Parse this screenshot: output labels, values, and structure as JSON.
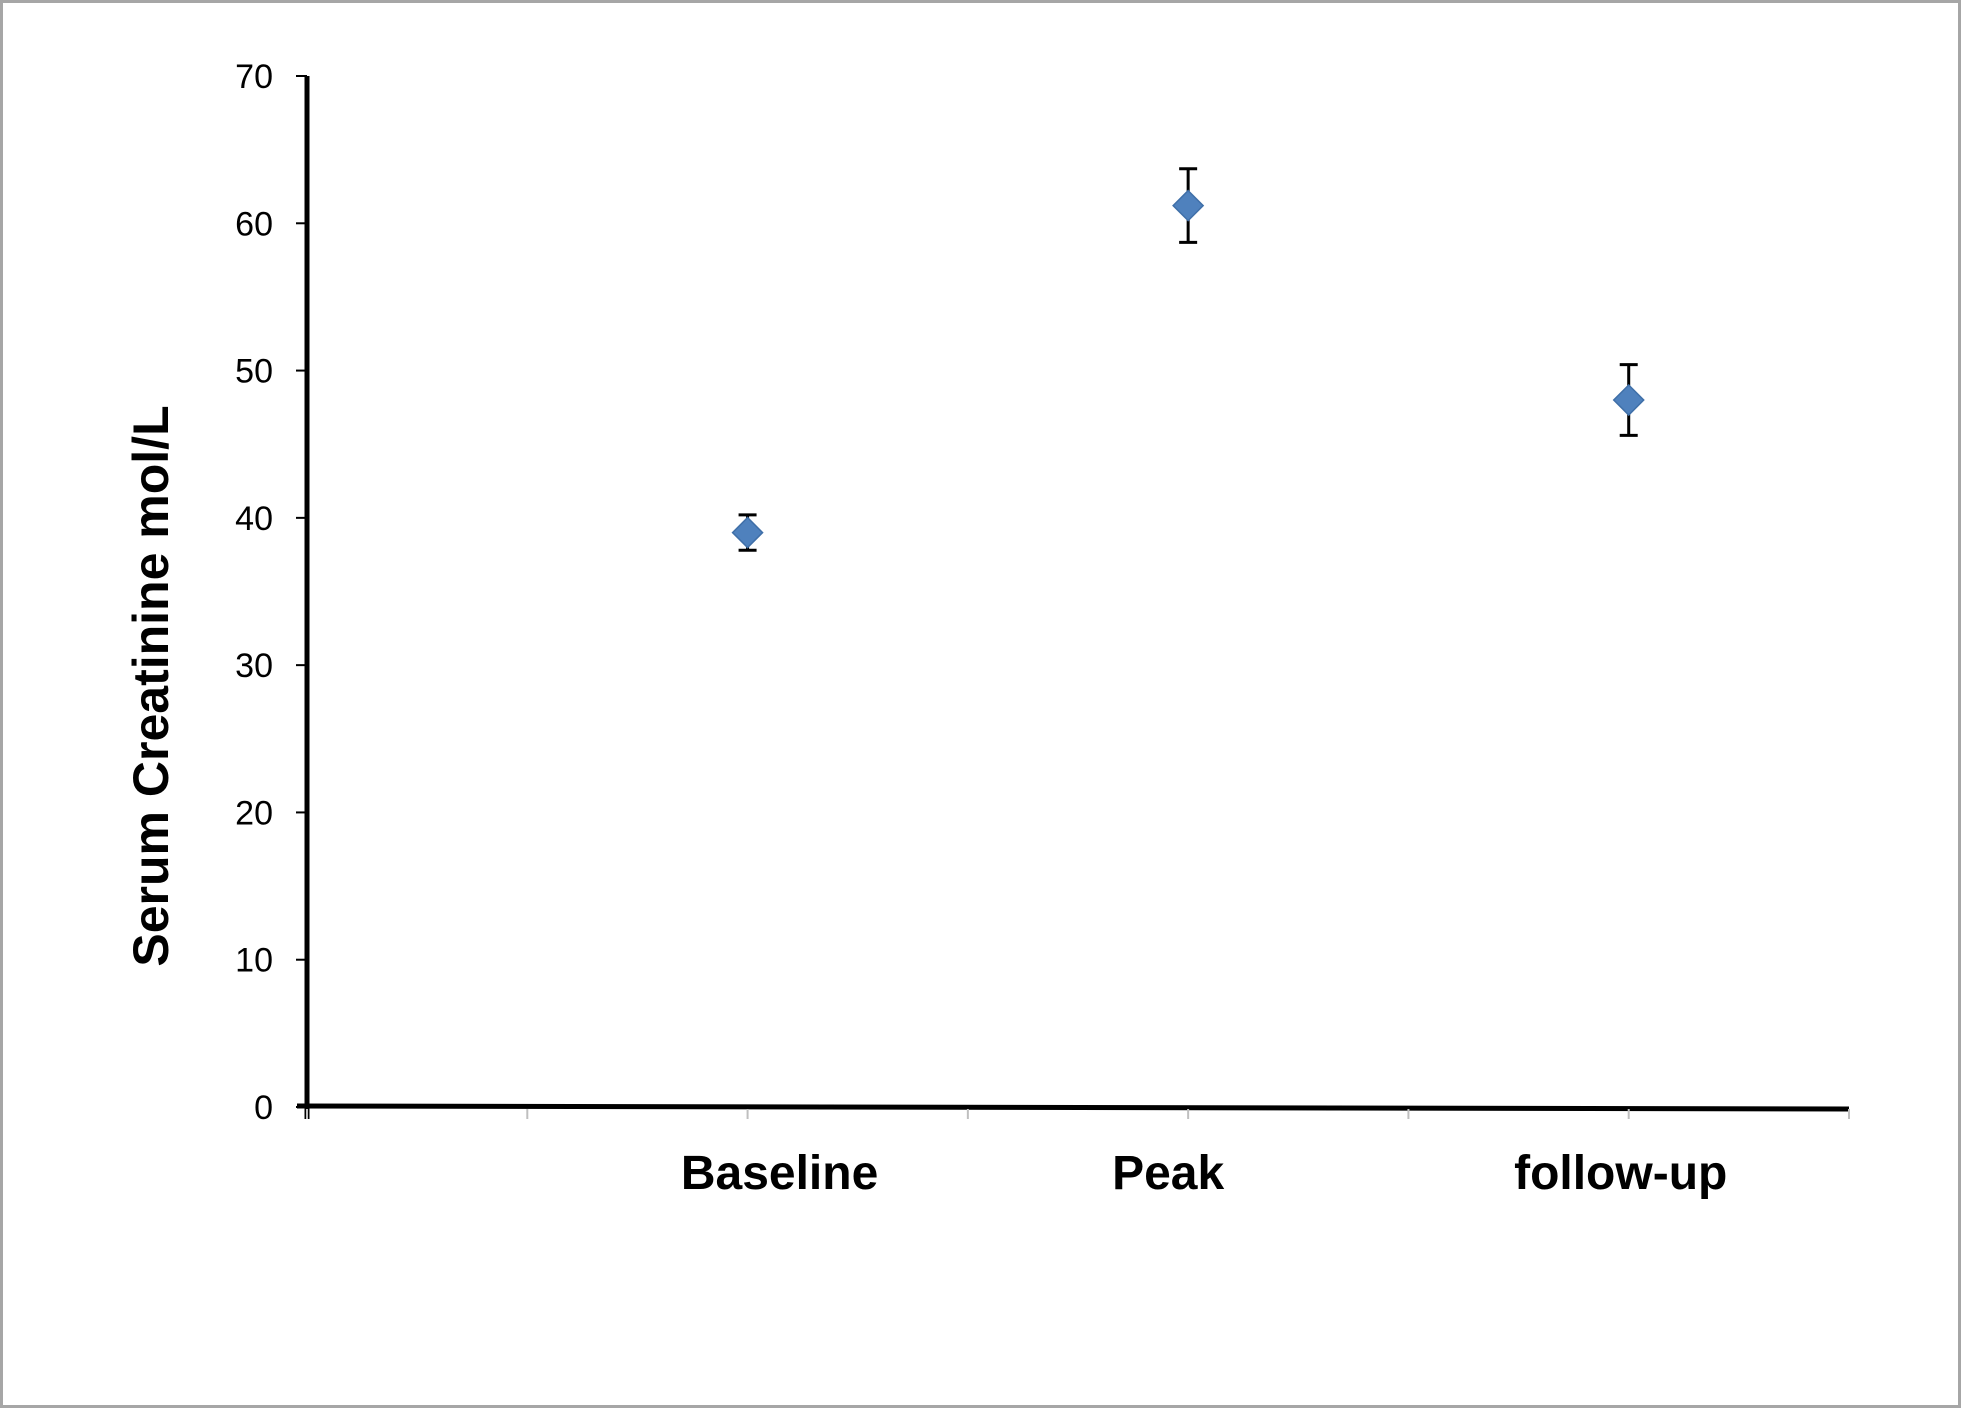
{
  "chart_data": {
    "type": "scatter",
    "title": "",
    "xlabel": "",
    "ylabel": "Serum Creatinine   mol/L",
    "ylim": [
      0,
      70
    ],
    "yticks": [
      0,
      10,
      20,
      30,
      40,
      50,
      60,
      70
    ],
    "categories": [
      "Baseline",
      "Peak",
      "follow-up"
    ],
    "series": [
      {
        "values": [
          39,
          61.2,
          48
        ],
        "errors": [
          1.2,
          2.5,
          2.4
        ],
        "color": "#4f81bd",
        "marker": "diamond"
      }
    ],
    "grid": false,
    "legend": "none"
  }
}
